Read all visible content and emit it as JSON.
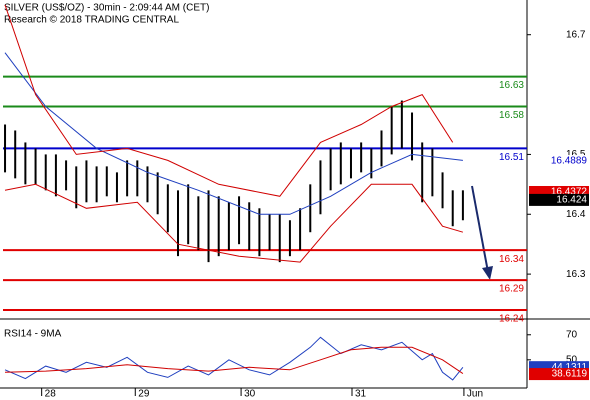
{
  "header": {
    "title": "SILVER (US$/OZ) - 30min - 2:09:44 AM (CET)",
    "subtitle": "Research © 2018 TRADING CENTRAL"
  },
  "chart_data": [
    {
      "type": "hilo",
      "color": "#000000",
      "xlim": [
        -0.2,
        51.3
      ],
      "ylim": [
        16.225,
        16.758
      ],
      "yticks": [
        16.3,
        16.4,
        16.5,
        16.7
      ],
      "x": [
        0,
        1,
        2,
        3,
        4,
        5,
        6,
        7,
        8,
        9,
        10,
        11,
        12,
        13,
        14,
        15,
        16,
        17,
        18,
        19,
        20,
        21,
        22,
        23,
        24,
        25,
        26,
        27,
        28,
        29,
        30,
        31,
        32,
        33,
        34,
        35,
        36,
        37,
        38,
        39,
        40,
        41,
        42,
        43,
        44,
        45
      ],
      "high": [
        16.55,
        16.54,
        16.52,
        16.51,
        16.5,
        16.5,
        16.49,
        16.48,
        16.49,
        16.48,
        16.48,
        16.47,
        16.49,
        16.49,
        16.48,
        16.47,
        16.45,
        16.44,
        16.45,
        16.43,
        16.44,
        16.43,
        16.42,
        16.43,
        16.42,
        16.41,
        16.4,
        16.4,
        16.39,
        16.41,
        16.45,
        16.49,
        16.51,
        16.52,
        16.51,
        16.52,
        16.51,
        16.54,
        16.58,
        16.59,
        16.57,
        16.52,
        16.51,
        16.47,
        16.44,
        16.44
      ],
      "low": [
        16.47,
        16.46,
        16.45,
        16.45,
        16.44,
        16.43,
        16.44,
        16.41,
        16.42,
        16.42,
        16.43,
        16.42,
        16.43,
        16.43,
        16.42,
        16.4,
        16.37,
        16.33,
        16.35,
        16.34,
        16.32,
        16.33,
        16.34,
        16.35,
        16.34,
        16.33,
        16.34,
        16.32,
        16.33,
        16.34,
        16.37,
        16.4,
        16.44,
        16.45,
        16.46,
        16.47,
        16.46,
        16.48,
        16.5,
        16.51,
        16.49,
        16.42,
        16.43,
        16.41,
        16.38,
        16.39
      ],
      "lines": [
        {
          "color": "#1f3fbf",
          "x": [
            0,
            4,
            9,
            14,
            19,
            25,
            28,
            32,
            36,
            40,
            45
          ],
          "values": [
            16.67,
            16.58,
            16.51,
            16.47,
            16.44,
            16.4,
            16.4,
            16.43,
            16.47,
            16.5,
            16.49
          ]
        },
        {
          "color": "#d00000",
          "x": [
            0,
            3,
            7,
            12,
            16,
            21,
            27,
            31,
            35,
            38,
            41,
            44
          ],
          "values": [
            16.75,
            16.6,
            16.5,
            16.51,
            16.49,
            16.45,
            16.43,
            16.52,
            16.55,
            16.58,
            16.6,
            16.52
          ]
        },
        {
          "color": "#d00000",
          "x": [
            0,
            3,
            8,
            13,
            17,
            23,
            29,
            32,
            36,
            40,
            43,
            45
          ],
          "values": [
            16.44,
            16.45,
            16.41,
            16.42,
            16.35,
            16.33,
            16.32,
            16.38,
            16.45,
            16.45,
            16.38,
            16.37
          ]
        }
      ],
      "levels": [
        {
          "value": 16.63,
          "color": "#1a8a1a"
        },
        {
          "value": 16.58,
          "color": "#1a8a1a"
        },
        {
          "value": 16.51,
          "color": "#0000cc"
        },
        {
          "value": 16.34,
          "color": "#e00000"
        },
        {
          "value": 16.29,
          "color": "#e00000"
        },
        {
          "value": 16.24,
          "color": "#e00000"
        }
      ],
      "price_labels": [
        {
          "value": 16.4889,
          "color": "#0000cc",
          "box": "#ffffff"
        },
        {
          "value": 16.4372,
          "color": "#ffffff",
          "box": "#e00000"
        },
        {
          "value": 16.424,
          "color": "#ffffff",
          "box": "#000000"
        }
      ]
    },
    {
      "type": "line",
      "title": "RSI14 - 9MA",
      "xlim": [
        -0.2,
        51.3
      ],
      "ylim": [
        27.5,
        81
      ],
      "yticks": [
        50,
        70
      ],
      "xticks": [
        {
          "value": 3.6,
          "label": "28"
        },
        {
          "value": 12.8,
          "label": "29"
        },
        {
          "value": 23.2,
          "label": "30"
        },
        {
          "value": 34.1,
          "label": "31"
        },
        {
          "value": 45.1,
          "label": "Jun"
        }
      ],
      "lines": [
        {
          "color": "#1f3fbf",
          "x": [
            0,
            2,
            4,
            6,
            8,
            10,
            12,
            14,
            16,
            18,
            20,
            22,
            24,
            26,
            28,
            30,
            31,
            33,
            35,
            37,
            39,
            41,
            42,
            43,
            44,
            45
          ],
          "values": [
            42,
            35,
            45,
            40,
            48,
            44,
            52,
            40,
            36,
            45,
            38,
            50,
            42,
            38,
            48,
            60,
            68,
            55,
            62,
            58,
            64,
            50,
            55,
            40,
            34,
            44
          ]
        },
        {
          "color": "#d00000",
          "x": [
            0,
            4,
            8,
            12,
            16,
            20,
            24,
            28,
            31,
            34,
            37,
            40,
            43,
            45
          ],
          "values": [
            40,
            41,
            43,
            46,
            43,
            41,
            44,
            42,
            50,
            58,
            60,
            60,
            50,
            39
          ]
        }
      ],
      "price_labels": [
        {
          "value": 44.1311,
          "color": "#ffffff",
          "box": "#1f3fbf"
        },
        {
          "value": 38.6119,
          "color": "#ffffff",
          "box": "#e00000"
        }
      ]
    }
  ]
}
